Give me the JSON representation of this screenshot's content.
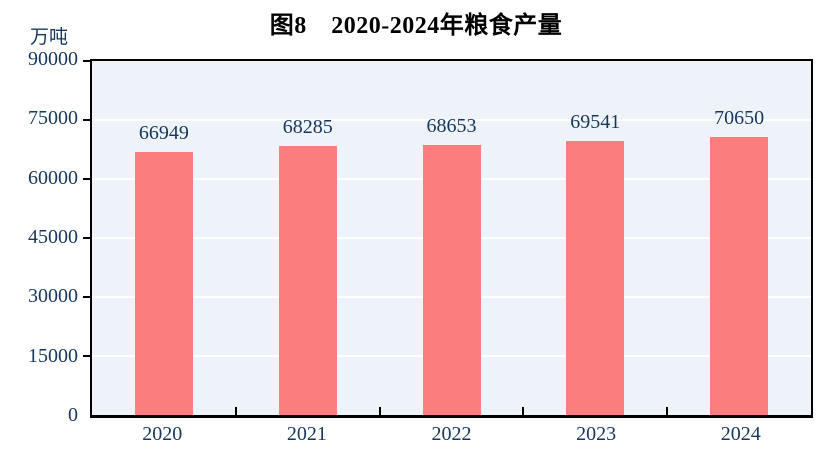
{
  "figure": {
    "title": "图8　2020-2024年粮食产量",
    "unit_label": "万吨"
  },
  "chart_data": {
    "type": "bar",
    "title": "图8　2020-2024年粮食产量",
    "categories": [
      "2020",
      "2021",
      "2022",
      "2023",
      "2024"
    ],
    "values": [
      66949,
      68285,
      68653,
      69541,
      70650
    ],
    "xlabel": "",
    "ylabel": "万吨",
    "ylim": [
      0,
      90000
    ],
    "yticks": [
      0,
      15000,
      30000,
      45000,
      60000,
      75000,
      90000
    ],
    "grid": true,
    "legend": "none",
    "colors": {
      "bar": "#FC7D7D",
      "plot_background": "#EDF3F8",
      "gridline": "#FFFFFF",
      "axis": "#000000",
      "tick_label": "#17375E",
      "title": "#000000"
    }
  }
}
